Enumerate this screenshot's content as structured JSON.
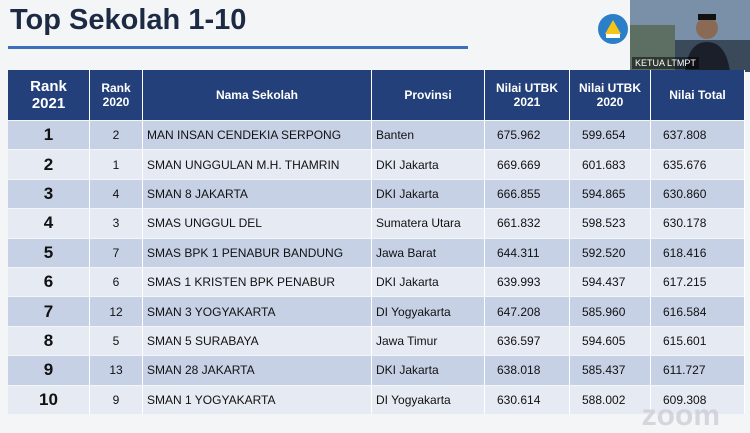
{
  "header": {
    "title": "Top Sekolah 1-10"
  },
  "webcam": {
    "label": "KETUA LTMPT"
  },
  "watermark": "zoom",
  "table": {
    "columns": [
      [
        "Rank",
        "2021"
      ],
      [
        "Rank",
        "2020"
      ],
      [
        "Nama Sekolah"
      ],
      [
        "Provinsi"
      ],
      [
        "Nilai UTBK",
        "2021"
      ],
      [
        "Nilai UTBK",
        "2020"
      ],
      [
        "Nilai Total"
      ]
    ],
    "rows": [
      [
        "1",
        "2",
        "MAN INSAN CENDEKIA SERPONG",
        "Banten",
        "675.962",
        "599.654",
        "637.808"
      ],
      [
        "2",
        "1",
        "SMAN UNGGULAN M.H. THAMRIN",
        "DKI Jakarta",
        "669.669",
        "601.683",
        "635.676"
      ],
      [
        "3",
        "4",
        "SMAN 8 JAKARTA",
        "DKI Jakarta",
        "666.855",
        "594.865",
        "630.860"
      ],
      [
        "4",
        "3",
        "SMAS UNGGUL DEL",
        "Sumatera Utara",
        "661.832",
        "598.523",
        "630.178"
      ],
      [
        "5",
        "7",
        "SMAS BPK 1 PENABUR BANDUNG",
        "Jawa Barat",
        "644.311",
        "592.520",
        "618.416"
      ],
      [
        "6",
        "6",
        "SMAS 1 KRISTEN BPK PENABUR",
        "DKI Jakarta",
        "639.993",
        "594.437",
        "617.215"
      ],
      [
        "7",
        "12",
        "SMAN 3 YOGYAKARTA",
        "DI Yogyakarta",
        "647.208",
        "585.960",
        "616.584"
      ],
      [
        "8",
        "5",
        "SMAN 5 SURABAYA",
        "Jawa Timur",
        "636.597",
        "594.605",
        "615.601"
      ],
      [
        "9",
        "13",
        "SMAN 28 JAKARTA",
        "DKI Jakarta",
        "638.018",
        "585.437",
        "611.727"
      ],
      [
        "10",
        "9",
        "SMAN 1 YOGYAKARTA",
        "DI Yogyakarta",
        "630.614",
        "588.002",
        "609.308"
      ]
    ]
  }
}
